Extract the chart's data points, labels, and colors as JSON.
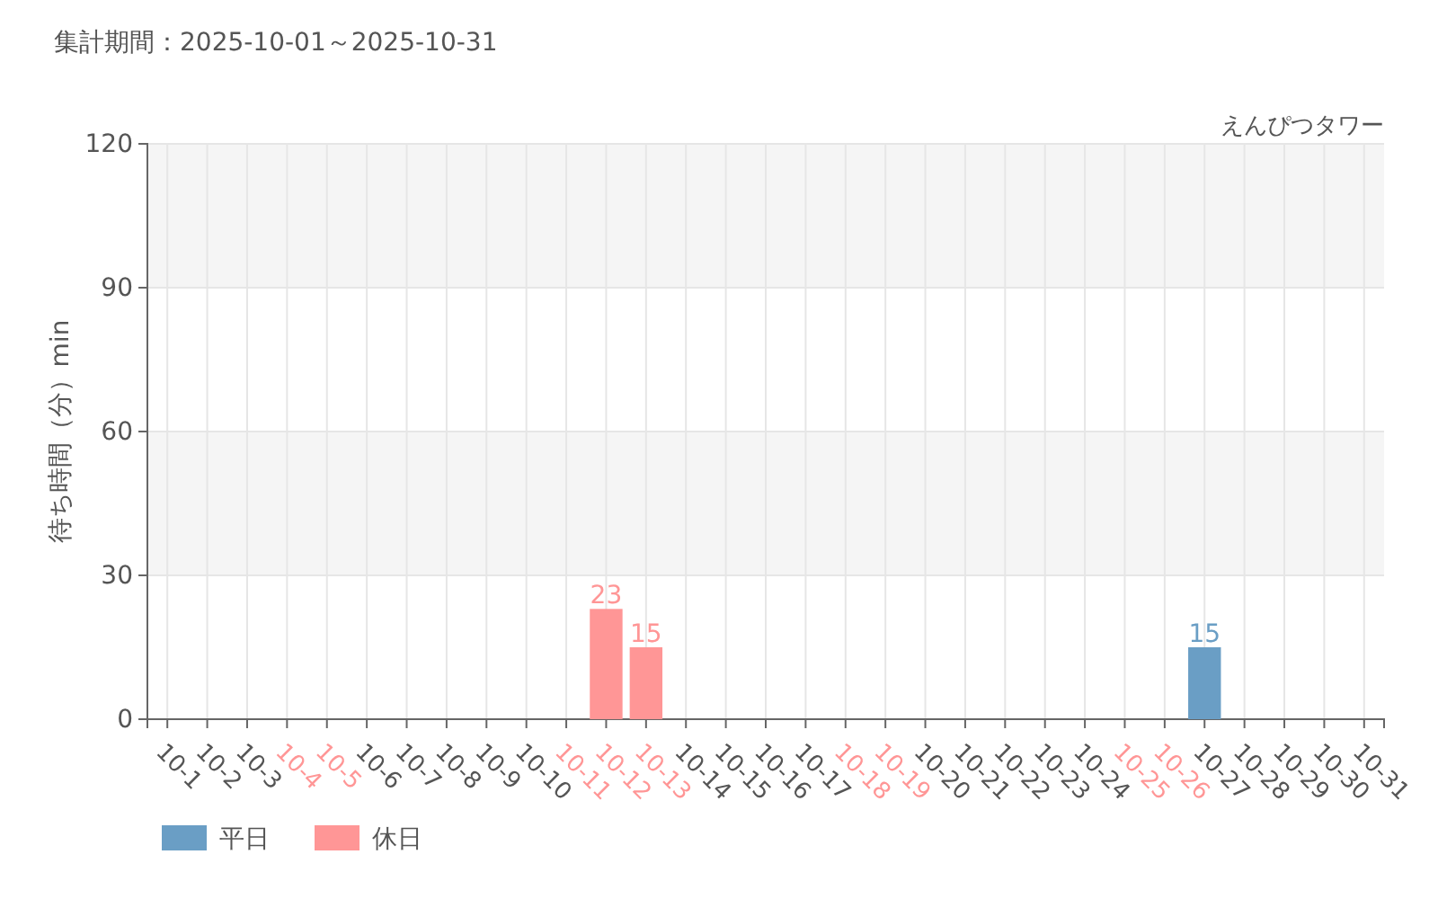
{
  "chart_data": {
    "type": "bar",
    "title": "集計期間：2025-10-01～2025-10-31",
    "subtitle": "えんぴつタワー",
    "ylabel": "待ち時間（分）min",
    "categories": [
      "10-1",
      "10-2",
      "10-3",
      "10-4",
      "10-5",
      "10-6",
      "10-7",
      "10-8",
      "10-9",
      "10-10",
      "10-11",
      "10-12",
      "10-13",
      "10-14",
      "10-15",
      "10-16",
      "10-17",
      "10-18",
      "10-19",
      "10-20",
      "10-21",
      "10-22",
      "10-23",
      "10-24",
      "10-25",
      "10-26",
      "10-27",
      "10-28",
      "10-29",
      "10-30",
      "10-31"
    ],
    "series": [
      {
        "name": "平日",
        "color": "#6a9ec5",
        "values": [
          0,
          0,
          0,
          null,
          null,
          0,
          0,
          0,
          0,
          0,
          null,
          null,
          null,
          0,
          0,
          0,
          0,
          null,
          null,
          0,
          0,
          0,
          0,
          0,
          null,
          null,
          15,
          0,
          0,
          0,
          0
        ],
        "value_labels": [
          null,
          null,
          null,
          null,
          null,
          null,
          null,
          null,
          null,
          null,
          null,
          null,
          null,
          null,
          null,
          null,
          null,
          null,
          null,
          null,
          null,
          null,
          null,
          null,
          null,
          null,
          "15",
          null,
          null,
          null,
          null
        ]
      },
      {
        "name": "休日",
        "color": "#ff9696",
        "values": [
          null,
          null,
          null,
          0,
          0,
          null,
          null,
          null,
          null,
          null,
          0,
          23,
          15,
          null,
          null,
          null,
          null,
          0,
          0,
          null,
          null,
          null,
          null,
          null,
          0,
          0,
          null,
          null,
          null,
          null,
          null
        ],
        "value_labels": [
          null,
          null,
          null,
          null,
          null,
          null,
          null,
          null,
          null,
          null,
          null,
          "23",
          "15",
          null,
          null,
          null,
          null,
          null,
          null,
          null,
          null,
          null,
          null,
          null,
          null,
          null,
          null,
          null,
          null,
          null,
          null
        ]
      }
    ],
    "ylim": [
      0,
      120
    ],
    "yticks": [
      0,
      30,
      60,
      90,
      120
    ],
    "grid": true,
    "legend": "bottom left",
    "bands": [
      {
        "axis": "y",
        "from": 30,
        "to": 60,
        "color": "#f5f5f5"
      },
      {
        "axis": "y",
        "from": 90,
        "to": 120,
        "color": "#f5f5f5"
      }
    ]
  }
}
